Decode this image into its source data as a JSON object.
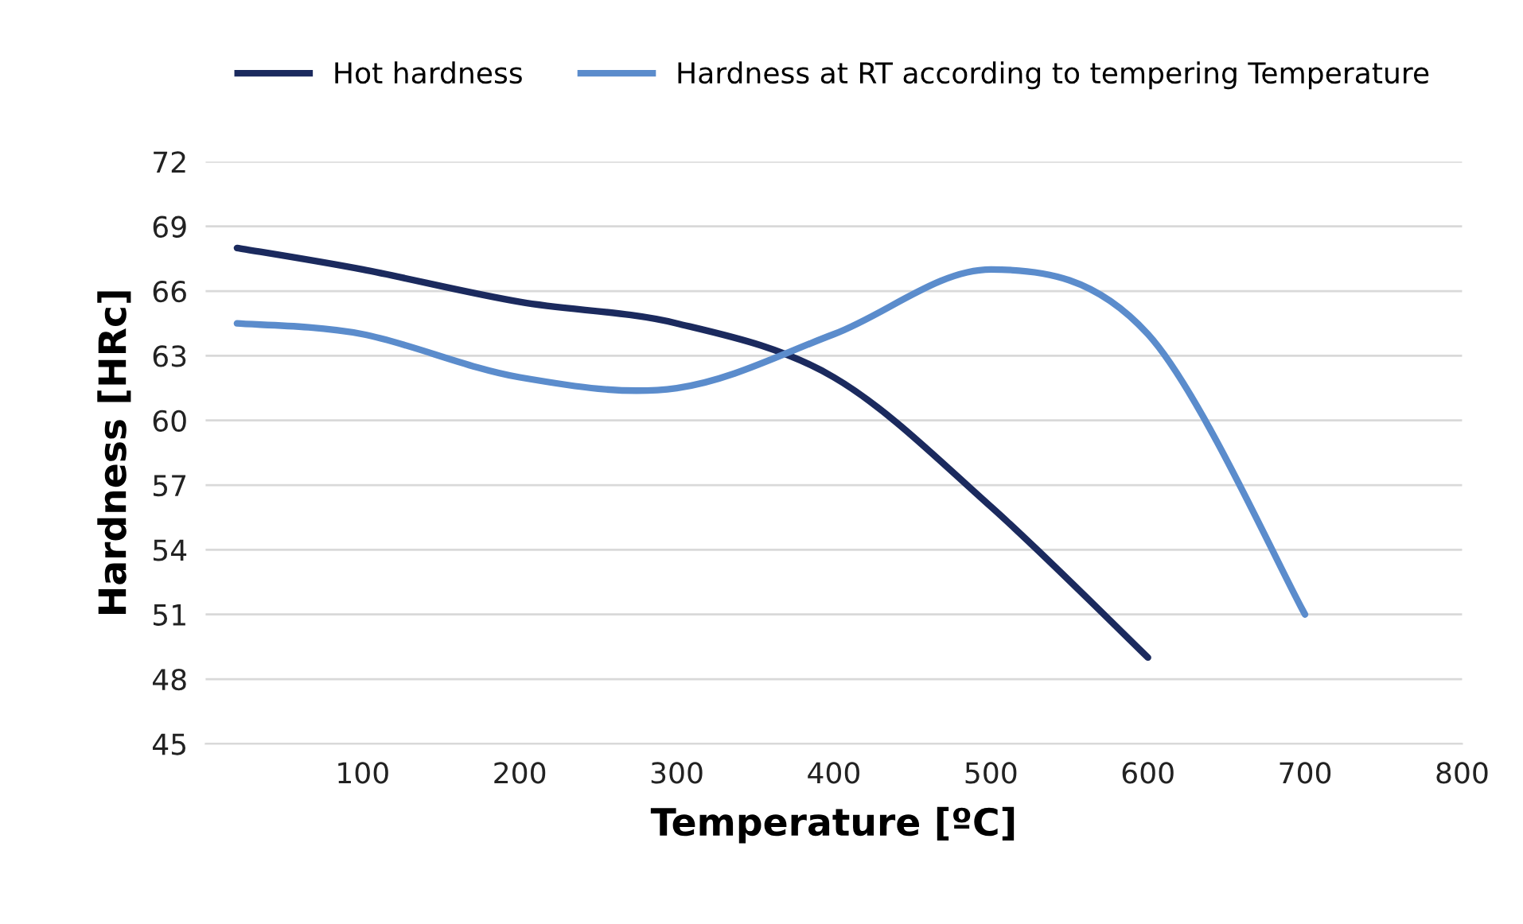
{
  "chart_data": {
    "type": "line",
    "xlabel": "Temperature [ºC]",
    "ylabel": "Hardness [HRc]",
    "xlim": [
      0,
      800
    ],
    "xticks": [
      100,
      200,
      300,
      400,
      500,
      600,
      700,
      800
    ],
    "ylim": [
      45,
      72
    ],
    "yticks": [
      45,
      48,
      51,
      54,
      57,
      60,
      63,
      66,
      69,
      72
    ],
    "grid": "y",
    "legend": "top",
    "marker": "none",
    "line_style": "solid",
    "series": [
      {
        "name": "Hot hardness",
        "color": "#1b2a5e",
        "x": [
          20,
          100,
          200,
          300,
          400,
          500,
          600
        ],
        "values": [
          68,
          67,
          65.5,
          64.5,
          62,
          56,
          49
        ]
      },
      {
        "name": "Hardness at RT according to tempering Temperature",
        "color": "#5b8ccc",
        "x": [
          20,
          100,
          200,
          300,
          400,
          500,
          600,
          700
        ],
        "values": [
          64.5,
          64,
          62,
          61.5,
          64,
          67,
          64,
          51
        ]
      }
    ]
  }
}
